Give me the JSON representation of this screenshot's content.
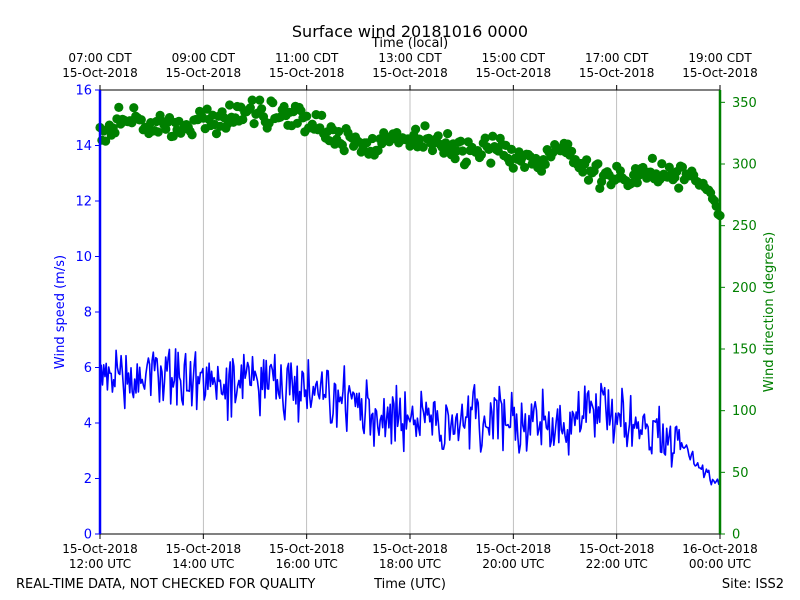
{
  "chart_data": {
    "type": "line+scatter",
    "title": "Surface wind 20181016 0000",
    "top_axis_label": "Time (local)",
    "xlabel": "Time (UTC)",
    "ylabel_left": "Wind speed (m/s)",
    "ylabel_right": "Wind direction (degrees)",
    "footer_left": "REAL-TIME DATA, NOT CHECKED FOR QUALITY",
    "footer_right": "Site: ISS2",
    "xlim_hours_utc": [
      12,
      24
    ],
    "ylim_left": [
      0,
      16
    ],
    "ylim_right": [
      0,
      360
    ],
    "yticks_left": [
      "0",
      "2",
      "4",
      "6",
      "8",
      "10",
      "12",
      "14",
      "16"
    ],
    "yticks_right": [
      "0",
      "50",
      "100",
      "150",
      "200",
      "250",
      "300",
      "350"
    ],
    "bottom_ticks": [
      {
        "hour": 12,
        "date": "15-Oct-2018",
        "time": "12:00 UTC"
      },
      {
        "hour": 14,
        "date": "15-Oct-2018",
        "time": "14:00 UTC"
      },
      {
        "hour": 16,
        "date": "15-Oct-2018",
        "time": "16:00 UTC"
      },
      {
        "hour": 18,
        "date": "15-Oct-2018",
        "time": "18:00 UTC"
      },
      {
        "hour": 20,
        "date": "15-Oct-2018",
        "time": "20:00 UTC"
      },
      {
        "hour": 22,
        "date": "15-Oct-2018",
        "time": "22:00 UTC"
      },
      {
        "hour": 24,
        "date": "16-Oct-2018",
        "time": "00:00 UTC"
      }
    ],
    "top_ticks": [
      {
        "hour": 12,
        "time": "07:00 CDT",
        "date": "15-Oct-2018"
      },
      {
        "hour": 14,
        "time": "09:00 CDT",
        "date": "15-Oct-2018"
      },
      {
        "hour": 16,
        "time": "11:00 CDT",
        "date": "15-Oct-2018"
      },
      {
        "hour": 18,
        "time": "13:00 CDT",
        "date": "15-Oct-2018"
      },
      {
        "hour": 20,
        "time": "15:00 CDT",
        "date": "15-Oct-2018"
      },
      {
        "hour": 22,
        "time": "17:00 CDT",
        "date": "15-Oct-2018"
      },
      {
        "hour": 24,
        "time": "19:00 CDT",
        "date": "15-Oct-2018"
      }
    ],
    "series": [
      {
        "name": "Wind speed (m/s)",
        "axis": "left",
        "color": "#0000ff",
        "style": "line",
        "hours": [
          12.0,
          12.5,
          13.0,
          13.5,
          14.0,
          14.5,
          15.0,
          15.5,
          16.0,
          16.5,
          17.0,
          17.5,
          18.0,
          18.5,
          19.0,
          19.5,
          20.0,
          20.5,
          21.0,
          21.5,
          22.0,
          22.5,
          23.0,
          23.3,
          23.5,
          23.7,
          24.0
        ],
        "values": [
          5.6,
          5.4,
          6.0,
          5.6,
          5.4,
          5.4,
          5.5,
          5.3,
          5.0,
          4.8,
          4.6,
          4.4,
          4.1,
          4.0,
          4.3,
          4.2,
          4.1,
          4.0,
          3.8,
          4.6,
          4.3,
          3.9,
          3.6,
          3.4,
          2.6,
          2.2,
          1.8
        ],
        "noise": 0.9
      },
      {
        "name": "Wind direction (degrees)",
        "axis": "right",
        "color": "#008000",
        "style": "scatter",
        "hours": [
          12.0,
          12.5,
          13.0,
          13.5,
          14.0,
          14.5,
          15.0,
          15.5,
          16.0,
          16.5,
          17.0,
          17.5,
          18.0,
          18.5,
          19.0,
          19.5,
          20.0,
          20.5,
          21.0,
          21.5,
          22.0,
          22.5,
          23.0,
          23.3,
          23.5,
          23.7,
          23.9,
          24.0
        ],
        "values": [
          328,
          335,
          335,
          328,
          332,
          338,
          343,
          340,
          335,
          325,
          318,
          316,
          322,
          320,
          312,
          315,
          305,
          305,
          310,
          295,
          290,
          292,
          292,
          290,
          290,
          280,
          268,
          256
        ],
        "noise": 14
      }
    ]
  }
}
